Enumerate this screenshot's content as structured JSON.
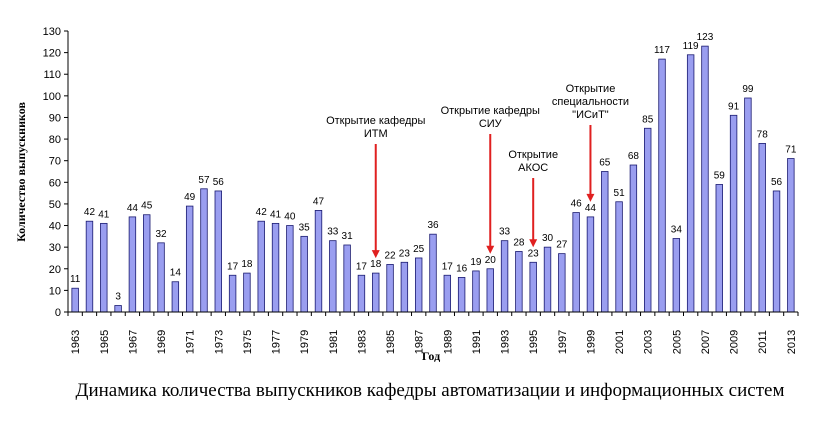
{
  "chart_data": {
    "type": "bar",
    "title": "Динамика количества выпускников кафедры автоматизации и информационных систем",
    "xlabel": "Год",
    "ylabel": "Количество выпускников",
    "ylim": [
      0,
      130
    ],
    "yticks": [
      0,
      10,
      20,
      30,
      40,
      50,
      60,
      70,
      80,
      90,
      100,
      110,
      120,
      130
    ],
    "grid": false,
    "bar_color": "#9a9ef0",
    "bar_border": "#1a1a70",
    "arrow_color": "#e02020",
    "categories": [
      1963,
      1964,
      1965,
      1966,
      1967,
      1968,
      1969,
      1970,
      1971,
      1972,
      1973,
      1974,
      1975,
      1976,
      1977,
      1978,
      1979,
      1980,
      1981,
      1982,
      1983,
      1984,
      1985,
      1986,
      1987,
      1988,
      1989,
      1990,
      1991,
      1992,
      1993,
      1994,
      1995,
      1996,
      1997,
      1998,
      1999,
      2000,
      2001,
      2002,
      2003,
      2004,
      2005,
      2006,
      2007,
      2008,
      2009,
      2010,
      2011,
      2012,
      2013
    ],
    "values": [
      11,
      42,
      41,
      3,
      44,
      45,
      32,
      14,
      49,
      57,
      56,
      17,
      18,
      42,
      41,
      40,
      35,
      47,
      33,
      31,
      17,
      18,
      22,
      23,
      25,
      36,
      17,
      16,
      19,
      20,
      33,
      28,
      23,
      30,
      27,
      46,
      44,
      65,
      51,
      68,
      85,
      117,
      34,
      119,
      123,
      59,
      91,
      99,
      78,
      56,
      71
    ],
    "xtick_labels": [
      "1963",
      "1965",
      "1967",
      "1969",
      "1971",
      "1973",
      "1975",
      "1977",
      "1979",
      "1981",
      "1983",
      "1985",
      "1987",
      "1989",
      "1991",
      "1993",
      "1995",
      "1997",
      "1999",
      "2001",
      "2003",
      "2005",
      "2007",
      "2009",
      "2011",
      "2013"
    ],
    "annotations": [
      {
        "lines": [
          "Открытие кафедры",
          "ИТМ"
        ],
        "year": 1984
      },
      {
        "lines": [
          "Открытие кафедры",
          "СИУ"
        ],
        "year": 1992
      },
      {
        "lines": [
          "Открытие",
          "АКОС"
        ],
        "year": 1995
      },
      {
        "lines": [
          "Открытие",
          "специальности",
          "\"ИСиТ\""
        ],
        "year": 1999
      }
    ]
  }
}
